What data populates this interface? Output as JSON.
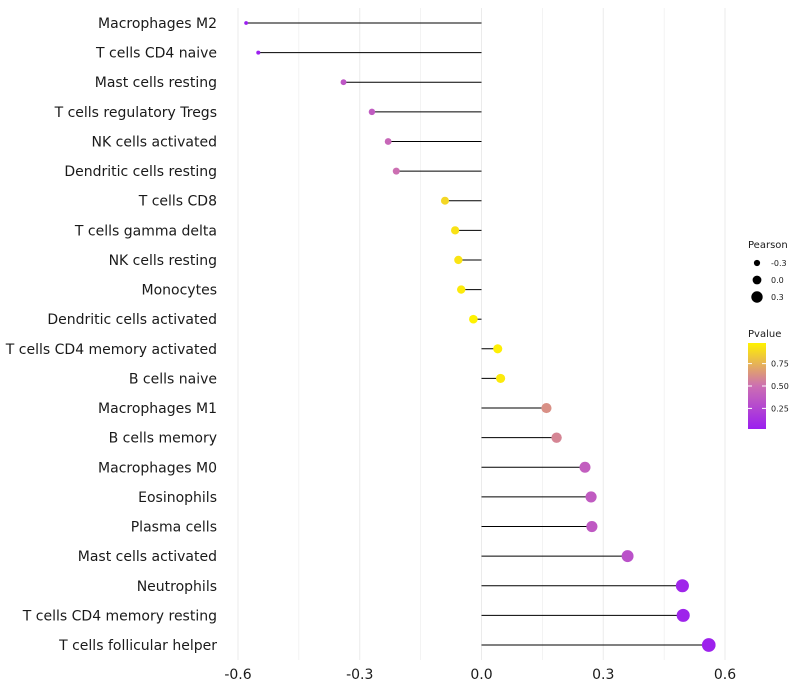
{
  "chart_data": {
    "type": "lollipop",
    "title": "",
    "xlabel": "",
    "ylabel": "",
    "xlim": [
      -0.6,
      0.6
    ],
    "xticks": [
      -0.6,
      -0.3,
      0.0,
      0.3,
      0.6
    ],
    "xtick_labels": [
      "-0.6",
      "-0.3",
      "0.0",
      "0.3",
      "0.6"
    ],
    "grid": true,
    "categories": [
      "Macrophages M2",
      "T cells CD4 naive",
      "Mast cells resting",
      "T cells regulatory  Tregs ",
      "NK cells activated",
      "Dendritic cells resting",
      "T cells CD8",
      "T cells gamma delta",
      "NK cells resting",
      "Monocytes",
      "Dendritic cells activated",
      "T cells CD4 memory activated",
      "B cells naive",
      "Macrophages M1",
      "B cells memory",
      "Macrophages M0",
      "Eosinophils",
      "Plasma cells",
      "Mast cells activated",
      "Neutrophils",
      "T cells CD4 memory resting",
      "T cells follicular helper"
    ],
    "pearson": [
      -0.58,
      -0.55,
      -0.34,
      -0.27,
      -0.23,
      -0.21,
      -0.09,
      -0.065,
      -0.057,
      -0.05,
      -0.02,
      0.04,
      0.047,
      0.16,
      0.185,
      0.255,
      0.27,
      0.272,
      0.36,
      0.495,
      0.497,
      0.56
    ],
    "pvalue": [
      0.02,
      0.03,
      0.35,
      0.38,
      0.45,
      0.5,
      0.88,
      0.92,
      0.93,
      0.95,
      0.98,
      0.97,
      0.95,
      0.62,
      0.58,
      0.4,
      0.38,
      0.37,
      0.32,
      0.06,
      0.05,
      0.04
    ],
    "legend": {
      "size_title": "Pearson",
      "size_entries": [
        {
          "label": "-0.3",
          "value": -0.3
        },
        {
          "label": "0.0",
          "value": 0.0
        },
        {
          "label": "0.3",
          "value": 0.3
        }
      ],
      "color_title": "Pvalue",
      "color_ticks": [
        {
          "label": "0.75",
          "value": 0.75
        },
        {
          "label": "0.50",
          "value": 0.5
        },
        {
          "label": "0.25",
          "value": 0.25
        }
      ],
      "color_range": [
        0.02,
        0.98
      ],
      "position": "right"
    },
    "colors": {
      "low": "#9B1FEF",
      "mid": "#CC6FB2",
      "high": "#FFF200",
      "segment": "#000000",
      "grid": "#EBEBEB"
    }
  }
}
